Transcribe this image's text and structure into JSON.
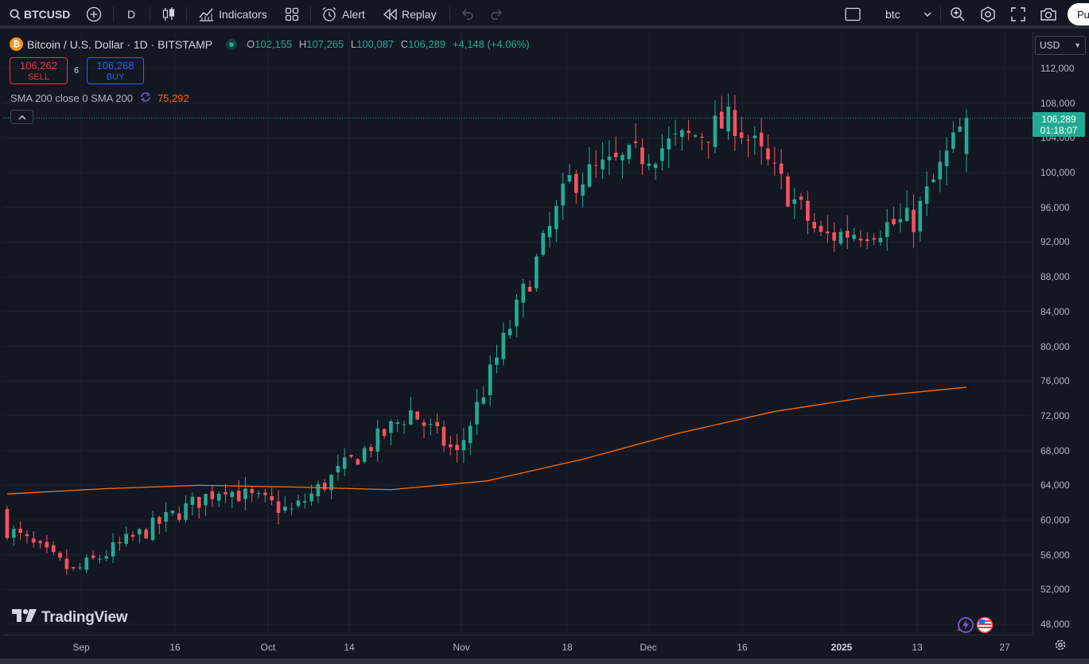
{
  "toolbar": {
    "symbol": "BTCUSD",
    "interval": "D",
    "indicators_label": "Indicators",
    "alert_label": "Alert",
    "replay_label": "Replay",
    "layout_name": "btc",
    "publish_label": "Pu"
  },
  "legend": {
    "coin_glyph": "₿",
    "title": "Bitcoin / U.S. Dollar · 1D · BITSTAMP",
    "open_key": "O",
    "open": "102,155",
    "high_key": "H",
    "high": "107,265",
    "low_key": "L",
    "low": "100,087",
    "close_key": "C",
    "close": "106,289",
    "change": "+4,148 (+4.06%)"
  },
  "trade": {
    "sell_price": "106,262",
    "sell_label": "SELL",
    "spread": "6",
    "buy_price": "106,268",
    "buy_label": "BUY"
  },
  "sma": {
    "label": "SMA 200 close 0 SMA 200",
    "value": "75,292"
  },
  "price_scale": {
    "currency": "USD",
    "ticks": [
      "112,000",
      "108,000",
      "104,000",
      "100,000",
      "96,000",
      "92,000",
      "88,000",
      "84,000",
      "80,000",
      "76,000",
      "72,000",
      "68,000",
      "64,000",
      "60,000",
      "56,000",
      "52,000",
      "48,000"
    ],
    "last_price": "106,289",
    "countdown": "01:18:07"
  },
  "time_scale": {
    "ticks": [
      "Sep",
      "16",
      "Oct",
      "14",
      "Nov",
      "18",
      "Dec",
      "16",
      "2025",
      "13",
      "27"
    ]
  },
  "watermark": "TradingView",
  "colors": {
    "up": "#22ab94",
    "down": "#f7525f",
    "sma": "#ff6d00",
    "background": "#131722",
    "grid": "#1e222d"
  },
  "chart_data": {
    "type": "candlestick",
    "symbol": "BTCUSD",
    "interval": "1D",
    "exchange": "BITSTAMP",
    "ylim": [
      46000,
      114000
    ],
    "series": [
      {
        "name": "SMA 200",
        "type": "line",
        "values": [
          63000,
          63600,
          64000,
          63800,
          63500,
          64500,
          67000,
          70000,
          72500,
          74200,
          75292
        ]
      },
      {
        "name": "BTCUSD",
        "type": "candles",
        "segments": [
          {
            "from": "Aug 27",
            "to": "Sep 7",
            "open": 59500,
            "close": 54000
          },
          {
            "from": "Sep 7",
            "to": "Sep 30",
            "open": 54000,
            "close": 64000
          },
          {
            "from": "Oct 1",
            "to": "Oct 11",
            "open": 63500,
            "close": 61000
          },
          {
            "from": "Oct 11",
            "to": "Oct 29",
            "open": 61000,
            "close": 72500
          },
          {
            "from": "Oct 29",
            "to": "Nov 5",
            "open": 72500,
            "close": 67500
          },
          {
            "from": "Nov 5",
            "to": "Nov 22",
            "open": 67500,
            "close": 99000
          },
          {
            "from": "Nov 22",
            "to": "Dec 17",
            "open": 99000,
            "close": 106000
          },
          {
            "from": "Dec 17",
            "to": "Dec 30",
            "open": 106000,
            "close": 92500
          },
          {
            "from": "Dec 30",
            "to": "Jan 13",
            "open": 92500,
            "close": 94500
          },
          {
            "from": "Jan 13",
            "to": "Jan 21",
            "open": 94500,
            "close": 106289
          }
        ]
      }
    ],
    "last": {
      "open": 102155,
      "high": 107265,
      "low": 100087,
      "close": 106289
    }
  }
}
